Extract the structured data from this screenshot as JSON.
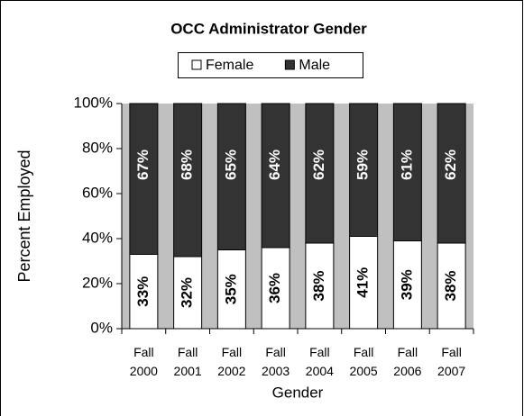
{
  "chart_data": {
    "type": "stacked_bar",
    "title": "OCC Administrator Gender",
    "x_label": "Gender",
    "y_label": "Percent Employed",
    "categories": [
      "Fall 2000",
      "Fall 2001",
      "Fall 2002",
      "Fall 2003",
      "Fall 2004",
      "Fall 2005",
      "Fall 2006",
      "Fall 2007"
    ],
    "series": [
      {
        "name": "Female",
        "color": "#ffffff",
        "values": [
          33,
          32,
          35,
          36,
          38,
          41,
          39,
          38
        ],
        "value_labels": [
          "33%",
          "32%",
          "35%",
          "36%",
          "38%",
          "41%",
          "39%",
          "38%"
        ]
      },
      {
        "name": "Male",
        "color": "#333333",
        "values": [
          67,
          68,
          65,
          64,
          62,
          59,
          61,
          62
        ],
        "value_labels": [
          "67%",
          "68%",
          "65%",
          "64%",
          "62%",
          "59%",
          "61%",
          "62%"
        ]
      }
    ],
    "ylim": [
      0,
      100
    ],
    "yticks": [
      {
        "value": 0,
        "label": "0%"
      },
      {
        "value": 20,
        "label": "20%"
      },
      {
        "value": 40,
        "label": "40%"
      },
      {
        "value": 60,
        "label": "60%"
      },
      {
        "value": 80,
        "label": "80%"
      },
      {
        "value": 100,
        "label": "100%"
      }
    ],
    "legend": "top",
    "plot_background": "#c0c0c0"
  }
}
